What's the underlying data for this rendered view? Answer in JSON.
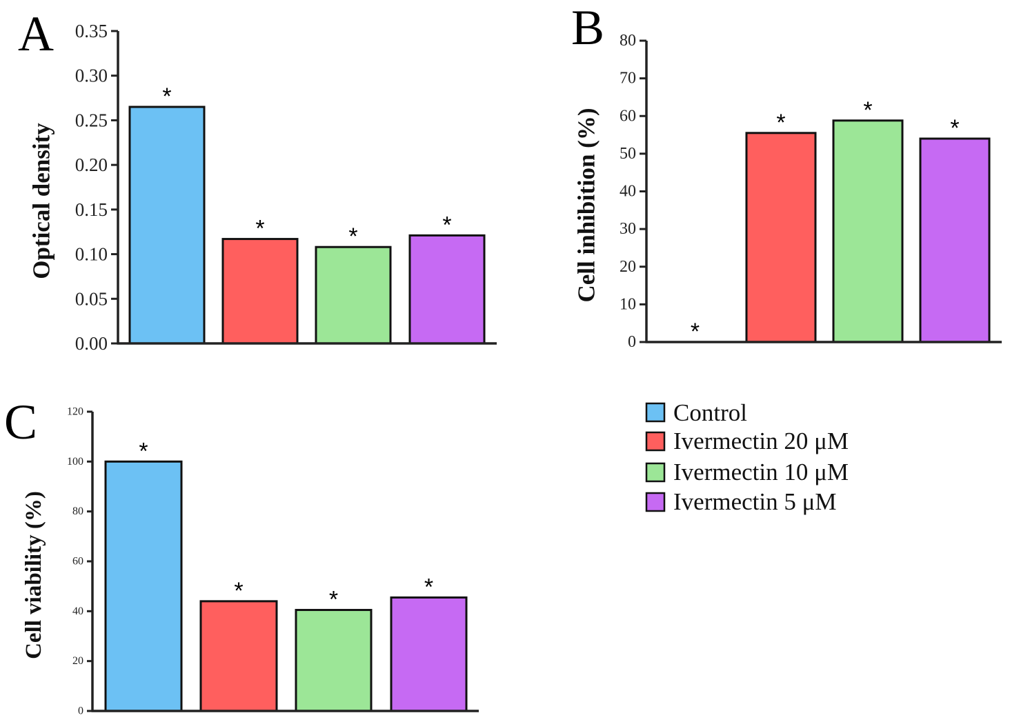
{
  "legend": [
    {
      "label": "Control",
      "color": "#6cc1f4"
    },
    {
      "label": "Ivermectin 20 μM",
      "color": "#ff5f5e"
    },
    {
      "label": "Ivermectin 10 μM",
      "color": "#9ce697"
    },
    {
      "label": "Ivermectin 5 μM",
      "color": "#c66af3"
    }
  ],
  "chart_data": [
    {
      "panel": "A",
      "type": "bar",
      "categories": [
        "Control",
        "Ivermectin 20 μM",
        "Ivermectin 10 μM",
        "Ivermectin 5 μM"
      ],
      "values": [
        0.265,
        0.117,
        0.108,
        0.121
      ],
      "significance": [
        "*",
        "*",
        "*",
        "*"
      ],
      "ylabel": "Optical density",
      "ylim": [
        0,
        0.35
      ],
      "yticks": [
        "0.00",
        "0.05",
        "0.10",
        "0.15",
        "0.20",
        "0.25",
        "0.30",
        "0.35"
      ],
      "grid": false
    },
    {
      "panel": "B",
      "type": "bar",
      "categories": [
        "Control",
        "Ivermectin 20 μM",
        "Ivermectin 10 μM",
        "Ivermectin 5 μM"
      ],
      "values": [
        0,
        55.5,
        58.8,
        54
      ],
      "significance": [
        "*",
        "*",
        "*",
        "*"
      ],
      "ylabel": "Cell inhibition (%)",
      "ylim": [
        0,
        80
      ],
      "yticks": [
        "0",
        "10",
        "20",
        "30",
        "40",
        "50",
        "60",
        "70",
        "80"
      ],
      "grid": false
    },
    {
      "panel": "C",
      "type": "bar",
      "categories": [
        "Control",
        "Ivermectin 20 μM",
        "Ivermectin 10 μM",
        "Ivermectin 5 μM"
      ],
      "values": [
        100,
        44,
        40.5,
        45.5
      ],
      "significance": [
        "*",
        "*",
        "*",
        "*"
      ],
      "ylabel": "Cell viability (%)",
      "ylim": [
        0,
        120
      ],
      "yticks": [
        "0",
        "20",
        "40",
        "60",
        "80",
        "100",
        "120"
      ],
      "grid": false
    }
  ]
}
